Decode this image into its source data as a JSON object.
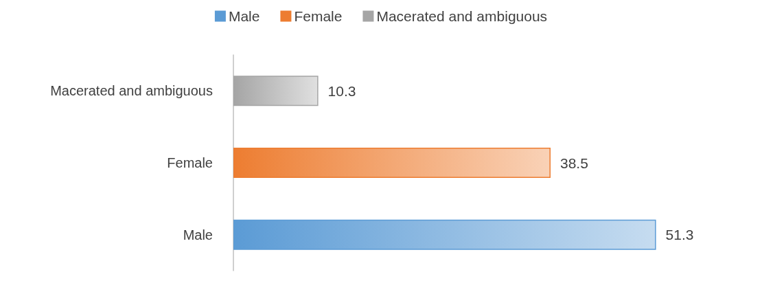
{
  "chart_data": {
    "type": "bar",
    "orientation": "horizontal",
    "stacked": true,
    "categories": [
      "Macerated and ambiguous",
      "Female",
      "Male"
    ],
    "series": [
      {
        "name": "Male",
        "color": "#5b9bd5",
        "values": [
          null,
          null,
          51.3
        ]
      },
      {
        "name": "Female",
        "color": "#ed7d31",
        "values": [
          null,
          38.5,
          null
        ]
      },
      {
        "name": "Macerated and ambiguous",
        "color": "#a5a5a5",
        "values": [
          10.3,
          null,
          null
        ]
      }
    ],
    "data_labels": true,
    "legend": "top"
  }
}
